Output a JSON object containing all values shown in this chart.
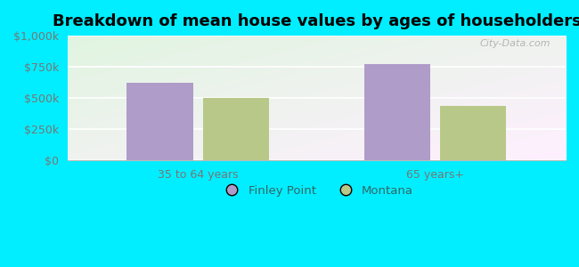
{
  "title": "Breakdown of mean house values by ages of householders",
  "categories": [
    "35 to 64 years",
    "65 years+"
  ],
  "series": {
    "Finley Point": [
      625000,
      775000
    ],
    "Montana": [
      500000,
      437500
    ]
  },
  "colors": {
    "Finley Point": "#b09cc8",
    "Montana": "#b8c888"
  },
  "ylim": [
    0,
    1000000
  ],
  "yticks": [
    0,
    250000,
    500000,
    750000,
    1000000
  ],
  "background_outer": "#00eeff",
  "watermark": "City-Data.com",
  "bar_width": 0.28,
  "title_fontsize": 13,
  "legend_fontsize": 9.5,
  "tick_fontsize": 9,
  "tick_color": "#777777",
  "legend_text_color": "#336666"
}
